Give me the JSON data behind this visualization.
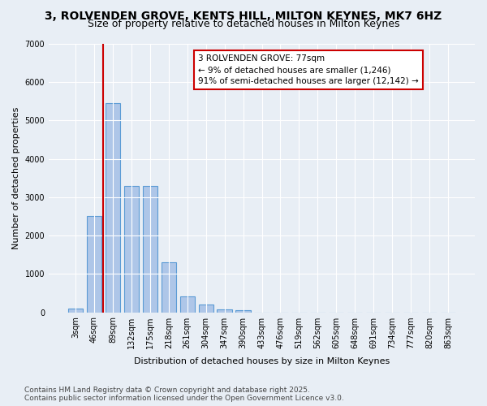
{
  "title_line1": "3, ROLVENDEN GROVE, KENTS HILL, MILTON KEYNES, MK7 6HZ",
  "title_line2": "Size of property relative to detached houses in Milton Keynes",
  "xlabel": "Distribution of detached houses by size in Milton Keynes",
  "ylabel": "Number of detached properties",
  "categories": [
    "3sqm",
    "46sqm",
    "89sqm",
    "132sqm",
    "175sqm",
    "218sqm",
    "261sqm",
    "304sqm",
    "347sqm",
    "390sqm",
    "433sqm",
    "476sqm",
    "519sqm",
    "562sqm",
    "605sqm",
    "648sqm",
    "691sqm",
    "734sqm",
    "777sqm",
    "820sqm",
    "863sqm"
  ],
  "values": [
    100,
    2500,
    5450,
    3300,
    3300,
    1300,
    420,
    200,
    80,
    50,
    0,
    0,
    0,
    0,
    0,
    0,
    0,
    0,
    0,
    0,
    0
  ],
  "bar_color": "#aec6e8",
  "bar_edge_color": "#5b9bd5",
  "vline_color": "#cc0000",
  "vline_x": 1.5,
  "annotation_text": "3 ROLVENDEN GROVE: 77sqm\n← 9% of detached houses are smaller (1,246)\n91% of semi-detached houses are larger (12,142) →",
  "annotation_box_color": "#ffffff",
  "annotation_box_edge": "#cc0000",
  "ylim": [
    0,
    7000
  ],
  "yticks": [
    0,
    1000,
    2000,
    3000,
    4000,
    5000,
    6000,
    7000
  ],
  "background_color": "#e8eef5",
  "plot_background": "#e8eef5",
  "grid_color": "#ffffff",
  "footer_line1": "Contains HM Land Registry data © Crown copyright and database right 2025.",
  "footer_line2": "Contains public sector information licensed under the Open Government Licence v3.0.",
  "title_fontsize": 10,
  "subtitle_fontsize": 9,
  "axis_label_fontsize": 8,
  "tick_fontsize": 7,
  "annotation_fontsize": 7.5,
  "footer_fontsize": 6.5
}
